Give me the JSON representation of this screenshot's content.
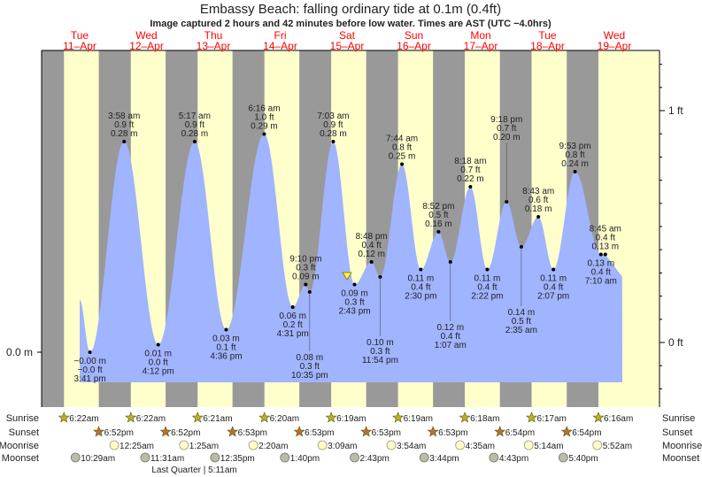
{
  "chart_data": {
    "type": "area",
    "title": "Embassy Beach: falling  ordinary tide at 0.1m (0.4ft)",
    "subtitle": "Image captured 2 hours and 42 minutes before low water. Times are AST (UTC −4.0hrs)",
    "days": [
      {
        "dow": "Tue",
        "date": "11–Apr"
      },
      {
        "dow": "Wed",
        "date": "12–Apr"
      },
      {
        "dow": "Thu",
        "date": "13–Apr"
      },
      {
        "dow": "Fri",
        "date": "14–Apr"
      },
      {
        "dow": "Sat",
        "date": "15–Apr"
      },
      {
        "dow": "Sun",
        "date": "16–Apr"
      },
      {
        "dow": "Mon",
        "date": "17–Apr"
      },
      {
        "dow": "Tue",
        "date": "18–Apr"
      },
      {
        "dow": "Wed",
        "date": "19–Apr"
      }
    ],
    "left_axis": {
      "unit": "m",
      "ticks": [
        {
          "value": 0,
          "label": "0.0 m"
        }
      ]
    },
    "right_axis": {
      "unit": "ft",
      "ticks": [
        {
          "value": 0,
          "label": "0 ft"
        },
        {
          "value": 1,
          "label": "1 ft"
        }
      ]
    },
    "extremes": [
      {
        "day": 0,
        "time": "3:41 pm",
        "m": "−0.00 m",
        "ft": "−0.0 ft",
        "h": 0.0,
        "type": "low"
      },
      {
        "day": 1,
        "time": "3:58 am",
        "m": "0.28 m",
        "ft": "0.9 ft",
        "h": 0.28,
        "type": "high"
      },
      {
        "day": 1,
        "time": "4:12 pm",
        "m": "0.01 m",
        "ft": "0.0 ft",
        "h": 0.01,
        "type": "low"
      },
      {
        "day": 2,
        "time": "5:17 am",
        "m": "0.28 m",
        "ft": "0.9 ft",
        "h": 0.28,
        "type": "high"
      },
      {
        "day": 2,
        "time": "4:36 pm",
        "m": "0.03 m",
        "ft": "0.1 ft",
        "h": 0.03,
        "type": "low"
      },
      {
        "day": 3,
        "time": "6:16 am",
        "m": "0.29 m",
        "ft": "1.0 ft",
        "h": 0.29,
        "type": "high"
      },
      {
        "day": 3,
        "time": "4:31 pm",
        "m": "0.06 m",
        "ft": "0.2 ft",
        "h": 0.06,
        "type": "low"
      },
      {
        "day": 3,
        "time": "9:10 pm",
        "m": "0.09 m",
        "ft": "0.3 ft",
        "h": 0.09,
        "type": "high"
      },
      {
        "day": 3,
        "time": "10:35 pm",
        "m": "0.08 m",
        "ft": "0.3 ft",
        "h": 0.08,
        "type": "low"
      },
      {
        "day": 4,
        "time": "7:03 am",
        "m": "0.28 m",
        "ft": "0.9 ft",
        "h": 0.28,
        "type": "high"
      },
      {
        "day": 4,
        "time": "2:43 pm",
        "m": "0.09 m",
        "ft": "0.3 ft",
        "h": 0.09,
        "type": "low"
      },
      {
        "day": 4,
        "time": "8:48 pm",
        "m": "0.12 m",
        "ft": "0.4 ft",
        "h": 0.12,
        "type": "high"
      },
      {
        "day": 4,
        "time": "11:54 pm",
        "m": "0.10 m",
        "ft": "0.3 ft",
        "h": 0.1,
        "type": "low"
      },
      {
        "day": 5,
        "time": "7:44 am",
        "m": "0.25 m",
        "ft": "0.8 ft",
        "h": 0.25,
        "type": "high"
      },
      {
        "day": 5,
        "time": "2:30 pm",
        "m": "0.11 m",
        "ft": "0.4 ft",
        "h": 0.11,
        "type": "low"
      },
      {
        "day": 5,
        "time": "8:52 pm",
        "m": "0.16 m",
        "ft": "0.5 ft",
        "h": 0.16,
        "type": "high"
      },
      {
        "day": 6,
        "time": "1:07 am",
        "m": "0.12 m",
        "ft": "0.4 ft",
        "h": 0.12,
        "type": "low"
      },
      {
        "day": 6,
        "time": "8:18 am",
        "m": "0.22 m",
        "ft": "0.7 ft",
        "h": 0.22,
        "type": "high"
      },
      {
        "day": 6,
        "time": "2:22 pm",
        "m": "0.11 m",
        "ft": "0.4 ft",
        "h": 0.11,
        "type": "low"
      },
      {
        "day": 6,
        "time": "9:18 pm",
        "m": "0.20 m",
        "ft": "0.7 ft",
        "h": 0.2,
        "type": "high"
      },
      {
        "day": 7,
        "time": "2:35 am",
        "m": "0.14 m",
        "ft": "0.5 ft",
        "h": 0.14,
        "type": "low"
      },
      {
        "day": 7,
        "time": "8:43 am",
        "m": "0.18 m",
        "ft": "0.6 ft",
        "h": 0.18,
        "type": "high"
      },
      {
        "day": 7,
        "time": "2:07 pm",
        "m": "0.11 m",
        "ft": "0.4 ft",
        "h": 0.11,
        "type": "low"
      },
      {
        "day": 7,
        "time": "9:53 pm",
        "m": "0.24 m",
        "ft": "0.8 ft",
        "h": 0.24,
        "type": "high"
      },
      {
        "day": 8,
        "time": "7:10 am",
        "m": "0.13 m",
        "ft": "0.4 ft",
        "h": 0.13,
        "type": "low"
      },
      {
        "day": 8,
        "time": "8:45 am",
        "m": "0.13 m",
        "ft": "0.4 ft",
        "h": 0.13,
        "type": "high"
      }
    ],
    "current": {
      "day": 4,
      "time": "12:01 pm",
      "h": 0.1
    },
    "sunrise": [
      "6:22am",
      "6:22am",
      "6:21am",
      "6:20am",
      "6:19am",
      "6:19am",
      "6:18am",
      "6:17am",
      "6:16am"
    ],
    "sunset": [
      "6:52pm",
      "6:52pm",
      "6:53pm",
      "6:53pm",
      "6:53pm",
      "6:53pm",
      "6:54pm",
      "6:54pm"
    ],
    "moonrise": [
      {
        "day": 1,
        "time": "12:25am"
      },
      {
        "day": 2,
        "time": "1:25am"
      },
      {
        "day": 3,
        "time": "2:20am"
      },
      {
        "day": 4,
        "time": "3:09am"
      },
      {
        "day": 5,
        "time": "3:54am"
      },
      {
        "day": 6,
        "time": "4:35am"
      },
      {
        "day": 7,
        "time": "5:14am"
      },
      {
        "day": 8,
        "time": "5:52am"
      }
    ],
    "moonset": [
      {
        "day": 0,
        "time": "10:29am"
      },
      {
        "day": 1,
        "time": "11:31am"
      },
      {
        "day": 2,
        "time": "12:35pm"
      },
      {
        "day": 3,
        "time": "1:40pm"
      },
      {
        "day": 4,
        "time": "2:43pm"
      },
      {
        "day": 5,
        "time": "3:44pm"
      },
      {
        "day": 6,
        "time": "4:43pm"
      },
      {
        "day": 7,
        "time": "5:40pm"
      }
    ],
    "moon_phase": {
      "day": 2,
      "time": "5:11am",
      "label": "Last Quarter | 5:11am"
    },
    "row_labels": {
      "sunrise": "Sunrise",
      "sunset": "Sunset",
      "moonrise": "Moonrise",
      "moonset": "Moonset"
    },
    "colors": {
      "day": "#ffffcc",
      "night": "#999999",
      "water": "#a0b4ff",
      "day_label": "#ff0000",
      "sun_rise": "#b5b030",
      "sun_set": "#b5703a",
      "moonrise": "#ffffcc",
      "moonset": "#bbbbaa",
      "marker": "#ffff33"
    }
  }
}
